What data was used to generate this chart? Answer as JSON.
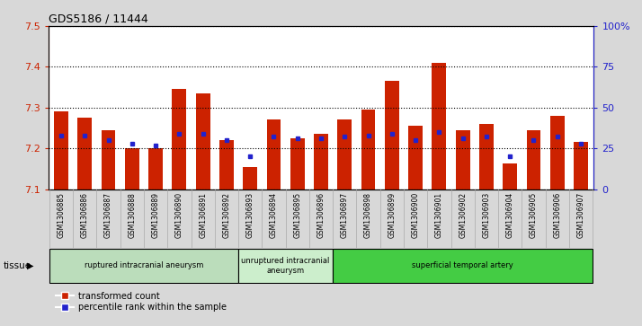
{
  "title": "GDS5186 / 11444",
  "samples": [
    "GSM1306885",
    "GSM1306886",
    "GSM1306887",
    "GSM1306888",
    "GSM1306889",
    "GSM1306890",
    "GSM1306891",
    "GSM1306892",
    "GSM1306893",
    "GSM1306894",
    "GSM1306895",
    "GSM1306896",
    "GSM1306897",
    "GSM1306898",
    "GSM1306899",
    "GSM1306900",
    "GSM1306901",
    "GSM1306902",
    "GSM1306903",
    "GSM1306904",
    "GSM1306905",
    "GSM1306906",
    "GSM1306907"
  ],
  "transformed_counts": [
    7.29,
    7.275,
    7.245,
    7.2,
    7.2,
    7.345,
    7.335,
    7.22,
    7.155,
    7.27,
    7.225,
    7.235,
    7.27,
    7.295,
    7.365,
    7.255,
    7.41,
    7.245,
    7.26,
    7.163,
    7.245,
    7.28,
    7.215
  ],
  "percentile_ranks": [
    33,
    33,
    30,
    28,
    27,
    34,
    34,
    30,
    20,
    32,
    31,
    31,
    32,
    33,
    34,
    30,
    35,
    31,
    32,
    20,
    30,
    32,
    28
  ],
  "y_min": 7.1,
  "y_max": 7.5,
  "bar_color": "#cc2200",
  "dot_color": "#2222cc",
  "figure_bg": "#d8d8d8",
  "plot_bg": "#ffffff",
  "xtick_bg": "#d0d0d0",
  "groups": [
    {
      "label": "ruptured intracranial aneurysm",
      "start": 0,
      "end": 7,
      "color": "#bbddbb"
    },
    {
      "label": "unruptured intracranial\naneurysm",
      "start": 8,
      "end": 11,
      "color": "#cceecc"
    },
    {
      "label": "superficial temporal artery",
      "start": 12,
      "end": 22,
      "color": "#44cc44"
    }
  ],
  "left_axis_color": "#cc2200",
  "right_axis_color": "#2222cc",
  "legend_tc": "transformed count",
  "legend_pr": "percentile rank within the sample",
  "tissue_label": "tissue"
}
